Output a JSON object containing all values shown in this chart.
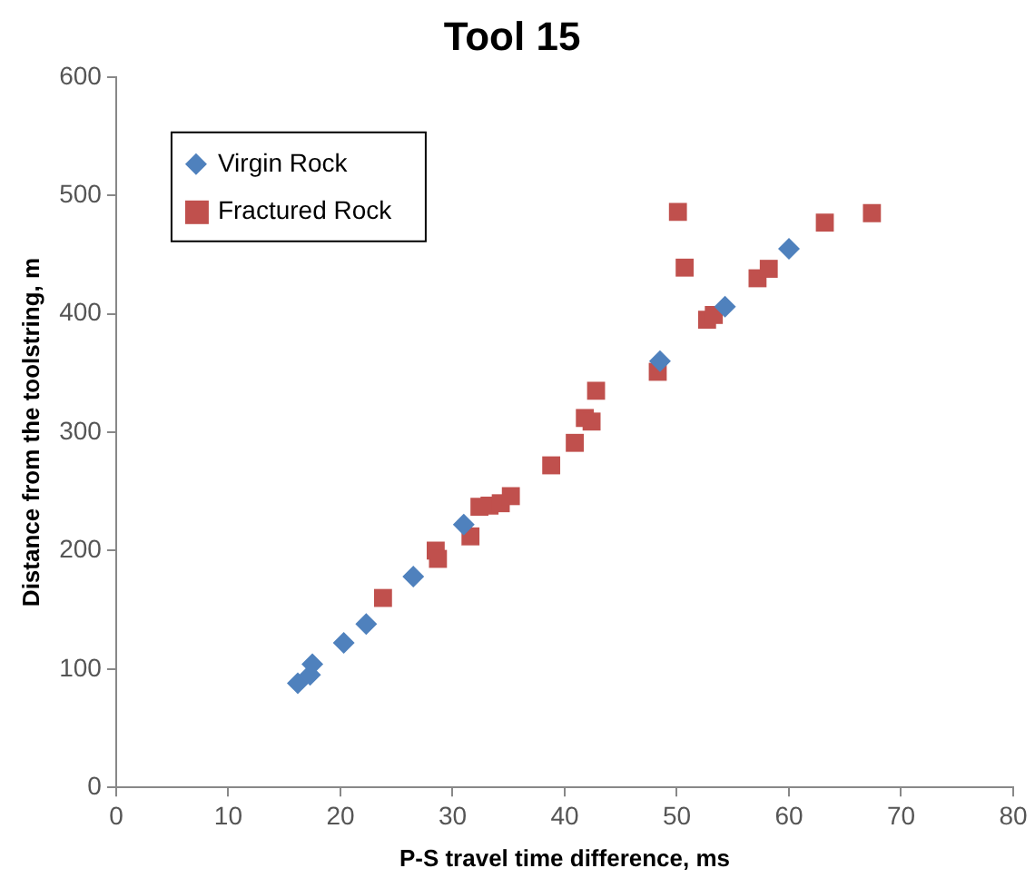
{
  "chart_data": {
    "type": "scatter",
    "title": "Tool 15",
    "xlabel": "P-S travel time difference, ms",
    "ylabel": "Distance from the toolstring, m",
    "xlim": [
      0,
      80
    ],
    "xticks": [
      0,
      10,
      20,
      30,
      40,
      50,
      60,
      70,
      80
    ],
    "ylim": [
      0,
      600
    ],
    "yticks": [
      0,
      100,
      200,
      300,
      400,
      500,
      600
    ],
    "grid": false,
    "legend": "top left",
    "series": [
      {
        "name": "Virgin Rock",
        "color": "#4f81bd",
        "marker": "diamond",
        "x": [
          16.2,
          17.3,
          17.5,
          20.3,
          22.3,
          26.5,
          31,
          48.5,
          54.3,
          60
        ],
        "values": [
          88,
          95,
          104,
          122,
          138,
          178,
          222,
          360,
          406,
          455
        ]
      },
      {
        "name": "Fractured Rock",
        "color": "#c0504d",
        "marker": "square",
        "x": [
          23.8,
          28.5,
          28.7,
          31.6,
          32.4,
          33.3,
          34.3,
          35.2,
          38.8,
          40.9,
          41.8,
          42.4,
          42.8,
          48.3,
          50.1,
          50.7,
          52.7,
          53.3,
          57.2,
          58.2,
          63.2,
          67.4
        ],
        "values": [
          160,
          200,
          193,
          212,
          237,
          238,
          240,
          246,
          272,
          291,
          312,
          309,
          335,
          351,
          486,
          439,
          395,
          399,
          430,
          438,
          477,
          485
        ]
      }
    ]
  }
}
